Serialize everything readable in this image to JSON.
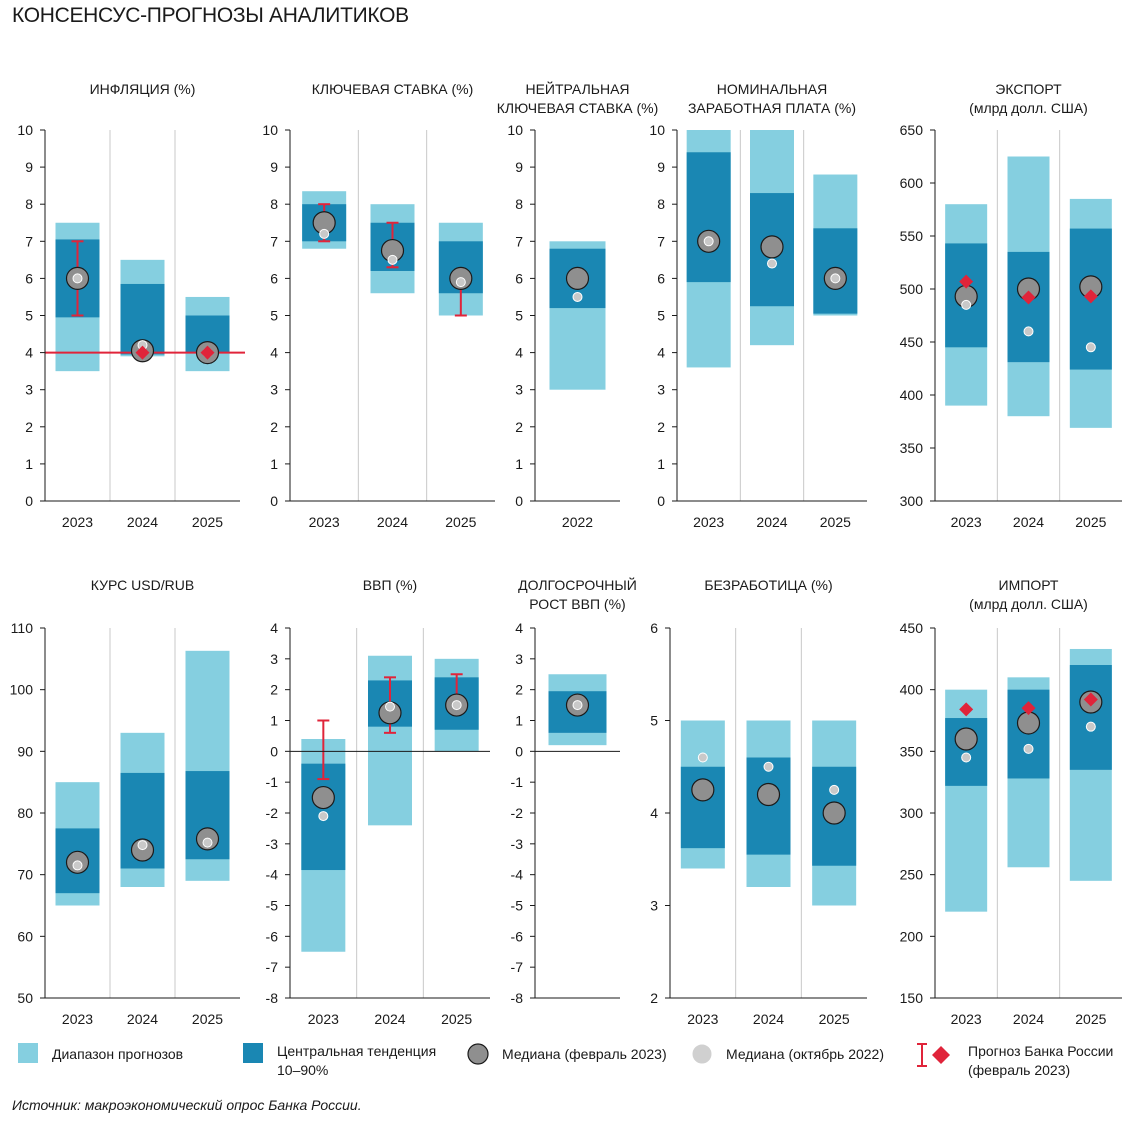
{
  "page_title": "КОНСЕНСУС-ПРОГНОЗЫ АНАЛИТИКОВ",
  "colors": {
    "range": "#85cfe0",
    "central": "#1a87b3",
    "median_new": "#8f8f8f",
    "median_old": "#c9c9c9",
    "cbr": "#e0243a",
    "axis": "#1a1a1a"
  },
  "legend": {
    "range": "Диапазон прогнозов",
    "central_line1": "Центральная тенденция",
    "central_line2": "10–90%",
    "median_new": "Медиана (февраль 2023)",
    "median_old": "Медиана (октябрь 2022)",
    "cbr_line1": "Прогноз Банка России",
    "cbr_line2": "(февраль 2023)"
  },
  "source": "Источник: макроэкономический опрос Банка России.",
  "chart_data": [
    {
      "type": "range",
      "title": [
        "ИНФЛЯЦИЯ (%)"
      ],
      "categories": [
        "2023",
        "2024",
        "2025"
      ],
      "ylim": [
        0,
        10
      ],
      "yticks": [
        0,
        1,
        2,
        3,
        4,
        5,
        6,
        7,
        8,
        9,
        10
      ],
      "range": [
        [
          3.5,
          7.5
        ],
        [
          3.9,
          6.5
        ],
        [
          3.5,
          5.5
        ]
      ],
      "central": [
        [
          4.95,
          7.05
        ],
        [
          3.95,
          5.85
        ],
        [
          4.0,
          5.0
        ]
      ],
      "median_feb2023": [
        6.0,
        4.05,
        4.0
      ],
      "median_oct2022": [
        6.0,
        4.2,
        4.0
      ],
      "cbr": [
        {
          "type": "interval",
          "low": 5.0,
          "high": 7.0
        },
        {
          "type": "point",
          "value": 4.0
        },
        {
          "type": "point",
          "value": 4.0
        }
      ],
      "target_line": 4.0
    },
    {
      "type": "range",
      "title": [
        "КЛЮЧЕВАЯ СТАВКА (%)"
      ],
      "categories": [
        "2023",
        "2024",
        "2025"
      ],
      "ylim": [
        0,
        10
      ],
      "yticks": [
        0,
        1,
        2,
        3,
        4,
        5,
        6,
        7,
        8,
        9,
        10
      ],
      "range": [
        [
          6.8,
          8.35
        ],
        [
          5.6,
          8.0
        ],
        [
          5.0,
          7.5
        ]
      ],
      "central": [
        [
          7.0,
          8.0
        ],
        [
          6.2,
          7.5
        ],
        [
          5.6,
          7.0
        ]
      ],
      "median_feb2023": [
        7.5,
        6.75,
        6.0
      ],
      "median_oct2022": [
        7.2,
        6.5,
        5.9
      ],
      "cbr": [
        {
          "type": "interval",
          "low": 7.0,
          "high": 8.0
        },
        {
          "type": "interval",
          "low": 6.3,
          "high": 7.5
        },
        {
          "type": "interval",
          "low": 5.0,
          "high": 6.0
        }
      ]
    },
    {
      "type": "range",
      "title": [
        "НЕЙТРАЛЬНАЯ",
        "КЛЮЧЕВАЯ СТАВКА (%)"
      ],
      "categories": [
        "2022"
      ],
      "ylim": [
        0,
        10
      ],
      "yticks": [
        0,
        1,
        2,
        3,
        4,
        5,
        6,
        7,
        8,
        9,
        10
      ],
      "range": [
        [
          3.0,
          7.0
        ]
      ],
      "central": [
        [
          5.2,
          6.8
        ]
      ],
      "median_feb2023": [
        6.0
      ],
      "median_oct2022": [
        5.5
      ],
      "cbr": [
        null
      ]
    },
    {
      "type": "range",
      "title": [
        "НОМИНАЛЬНАЯ",
        "ЗАРАБОТНАЯ ПЛАТА (%)"
      ],
      "categories": [
        "2023",
        "2024",
        "2025"
      ],
      "ylim": [
        0,
        10
      ],
      "yticks": [
        0,
        1,
        2,
        3,
        4,
        5,
        6,
        7,
        8,
        9,
        10
      ],
      "range": [
        [
          3.6,
          10.0
        ],
        [
          4.2,
          10.0
        ],
        [
          5.0,
          8.8
        ]
      ],
      "central": [
        [
          5.9,
          9.4
        ],
        [
          5.25,
          8.3
        ],
        [
          5.05,
          7.35
        ]
      ],
      "median_feb2023": [
        7.0,
        6.85,
        6.0
      ],
      "median_oct2022": [
        7.0,
        6.4,
        6.0
      ],
      "cbr": [
        null,
        null,
        null
      ]
    },
    {
      "type": "range",
      "title": [
        "ЭКСПОРТ",
        "(млрд долл. США)"
      ],
      "categories": [
        "2023",
        "2024",
        "2025"
      ],
      "ylim": [
        300,
        650
      ],
      "yticks": [
        300,
        350,
        400,
        450,
        500,
        550,
        600,
        650
      ],
      "range": [
        [
          390,
          580
        ],
        [
          380,
          625
        ],
        [
          369,
          585
        ]
      ],
      "central": [
        [
          445,
          543
        ],
        [
          431,
          535
        ],
        [
          424,
          557
        ]
      ],
      "median_feb2023": [
        493,
        500,
        502
      ],
      "median_oct2022": [
        485,
        460,
        445
      ],
      "cbr": [
        {
          "type": "point",
          "value": 507
        },
        {
          "type": "point",
          "value": 492
        },
        {
          "type": "point",
          "value": 493
        }
      ]
    },
    {
      "type": "range",
      "title": [
        "КУРС USD/RUB"
      ],
      "categories": [
        "2023",
        "2024",
        "2025"
      ],
      "ylim": [
        50,
        110
      ],
      "yticks": [
        50,
        60,
        70,
        80,
        90,
        100,
        110
      ],
      "range": [
        [
          65,
          85
        ],
        [
          68,
          93
        ],
        [
          69,
          106.3
        ]
      ],
      "central": [
        [
          67,
          77.5
        ],
        [
          71,
          86.5
        ],
        [
          72.5,
          86.8
        ]
      ],
      "median_feb2023": [
        72.0,
        74.0,
        75.8
      ],
      "median_oct2022": [
        71.5,
        74.8,
        75.2
      ],
      "cbr": [
        null,
        null,
        null
      ]
    },
    {
      "type": "range",
      "title": [
        "ВВП (%)"
      ],
      "categories": [
        "2023",
        "2024",
        "2025"
      ],
      "ylim": [
        -8,
        4
      ],
      "yticks": [
        -8,
        -7,
        -6,
        -5,
        -4,
        -3,
        -2,
        -1,
        0,
        1,
        2,
        3,
        4
      ],
      "range": [
        [
          -6.5,
          0.4
        ],
        [
          -2.4,
          3.1
        ],
        [
          0.0,
          3.0
        ]
      ],
      "central": [
        [
          -3.85,
          -0.4
        ],
        [
          0.8,
          2.3
        ],
        [
          0.7,
          2.4
        ]
      ],
      "median_feb2023": [
        -1.5,
        1.25,
        1.5
      ],
      "median_oct2022": [
        -2.1,
        1.45,
        1.5
      ],
      "cbr": [
        {
          "type": "interval",
          "low": -0.9,
          "high": 1.0
        },
        {
          "type": "interval",
          "low": 0.6,
          "high": 2.4
        },
        {
          "type": "interval",
          "low": 1.5,
          "high": 2.5
        }
      ]
    },
    {
      "type": "range",
      "title": [
        "ДОЛГОСРОЧНЫЙ",
        "РОСТ ВВП (%)"
      ],
      "categories": [
        ""
      ],
      "ylim": [
        -8,
        4
      ],
      "yticks": [
        -8,
        -7,
        -6,
        -5,
        -4,
        -3,
        -2,
        -1,
        0,
        1,
        2,
        3,
        4
      ],
      "range": [
        [
          0.2,
          2.5
        ]
      ],
      "central": [
        [
          0.6,
          1.95
        ]
      ],
      "median_feb2023": [
        1.5
      ],
      "median_oct2022": [
        1.5
      ],
      "cbr": [
        null
      ]
    },
    {
      "type": "range",
      "title": [
        "БЕЗРАБОТИЦА (%)"
      ],
      "categories": [
        "2023",
        "2024",
        "2025"
      ],
      "ylim": [
        2,
        6
      ],
      "yticks": [
        2,
        3,
        4,
        5,
        6
      ],
      "range": [
        [
          3.4,
          5.0
        ],
        [
          3.2,
          5.0
        ],
        [
          3.0,
          5.0
        ]
      ],
      "central": [
        [
          3.62,
          4.5
        ],
        [
          3.55,
          4.6
        ],
        [
          3.43,
          4.5
        ]
      ],
      "median_feb2023": [
        4.25,
        4.2,
        4.0
      ],
      "median_oct2022": [
        4.6,
        4.5,
        4.25
      ],
      "cbr": [
        null,
        null,
        null
      ]
    },
    {
      "type": "range",
      "title": [
        "ИМПОРТ",
        "(млрд долл. США)"
      ],
      "categories": [
        "2023",
        "2024",
        "2025"
      ],
      "ylim": [
        150,
        450
      ],
      "yticks": [
        150,
        200,
        250,
        300,
        350,
        400,
        450
      ],
      "range": [
        [
          220,
          400
        ],
        [
          256,
          410
        ],
        [
          245,
          433
        ]
      ],
      "central": [
        [
          322,
          377
        ],
        [
          328,
          400
        ],
        [
          335,
          420
        ]
      ],
      "median_feb2023": [
        360,
        373,
        390
      ],
      "median_oct2022": [
        345,
        352,
        370
      ],
      "cbr": [
        {
          "type": "point",
          "value": 384
        },
        {
          "type": "point",
          "value": 385
        },
        {
          "type": "point",
          "value": 392
        }
      ]
    }
  ]
}
